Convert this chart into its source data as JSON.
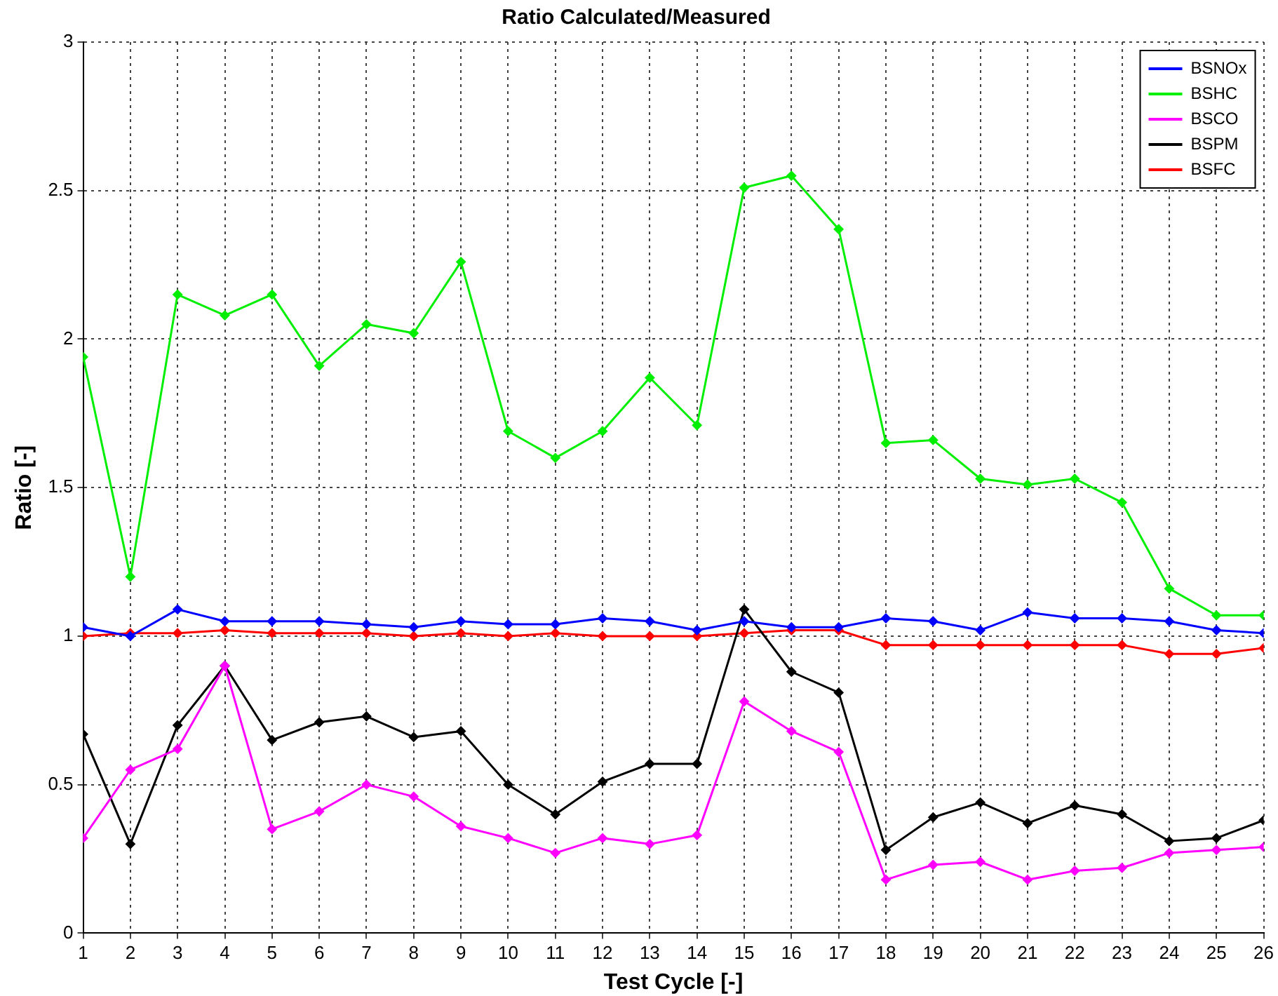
{
  "chart_data": {
    "type": "line",
    "title": "Ratio Calculated/Measured",
    "xlabel": "Test Cycle [-]",
    "ylabel": "Ratio [-]",
    "x": [
      1,
      2,
      3,
      4,
      5,
      6,
      7,
      8,
      9,
      10,
      11,
      12,
      13,
      14,
      15,
      16,
      17,
      18,
      19,
      20,
      21,
      22,
      23,
      24,
      25,
      26
    ],
    "xlim": [
      1,
      26
    ],
    "xticks": [
      1,
      2,
      3,
      4,
      5,
      6,
      7,
      8,
      9,
      10,
      11,
      12,
      13,
      14,
      15,
      16,
      17,
      18,
      19,
      20,
      21,
      22,
      23,
      24,
      25,
      26
    ],
    "ylim": [
      0,
      3
    ],
    "yticks": [
      0,
      0.5,
      1,
      1.5,
      2,
      2.5,
      3
    ],
    "grid": true,
    "legend": "top right",
    "marker": "diamond",
    "line_style": "solid",
    "series": [
      {
        "name": "BSNOx",
        "color": "#0000ff",
        "values": [
          1.03,
          1.0,
          1.09,
          1.05,
          1.05,
          1.05,
          1.04,
          1.03,
          1.05,
          1.04,
          1.04,
          1.06,
          1.05,
          1.02,
          1.05,
          1.03,
          1.03,
          1.06,
          1.05,
          1.02,
          1.08,
          1.06,
          1.06,
          1.05,
          1.02,
          1.01
        ]
      },
      {
        "name": "BSHC",
        "color": "#00ee00",
        "values": [
          1.94,
          1.2,
          2.15,
          2.08,
          2.15,
          1.91,
          2.05,
          2.02,
          2.26,
          1.69,
          1.6,
          1.69,
          1.87,
          1.71,
          2.51,
          2.55,
          2.37,
          1.65,
          1.66,
          1.53,
          1.51,
          1.53,
          1.45,
          1.16,
          1.07,
          1.07
        ]
      },
      {
        "name": "BSCO",
        "color": "#ff00ff",
        "values": [
          0.32,
          0.55,
          0.62,
          0.9,
          0.35,
          0.41,
          0.5,
          0.46,
          0.36,
          0.32,
          0.27,
          0.32,
          0.3,
          0.33,
          0.78,
          0.68,
          0.61,
          0.18,
          0.23,
          0.24,
          0.18,
          0.21,
          0.22,
          0.27,
          0.28,
          0.29
        ]
      },
      {
        "name": "BSPM",
        "color": "#000000",
        "values": [
          0.67,
          0.3,
          0.7,
          0.9,
          0.65,
          0.71,
          0.73,
          0.66,
          0.68,
          0.5,
          0.4,
          0.51,
          0.57,
          0.57,
          1.09,
          0.88,
          0.81,
          0.28,
          0.39,
          0.44,
          0.37,
          0.43,
          0.4,
          0.31,
          0.32,
          0.38
        ]
      },
      {
        "name": "BSFC",
        "color": "#ff0000",
        "values": [
          1.0,
          1.01,
          1.01,
          1.02,
          1.01,
          1.01,
          1.01,
          1.0,
          1.01,
          1.0,
          1.01,
          1.0,
          1.0,
          1.0,
          1.01,
          1.02,
          1.02,
          0.97,
          0.97,
          0.97,
          0.97,
          0.97,
          0.97,
          0.94,
          0.94,
          0.96
        ]
      }
    ]
  }
}
